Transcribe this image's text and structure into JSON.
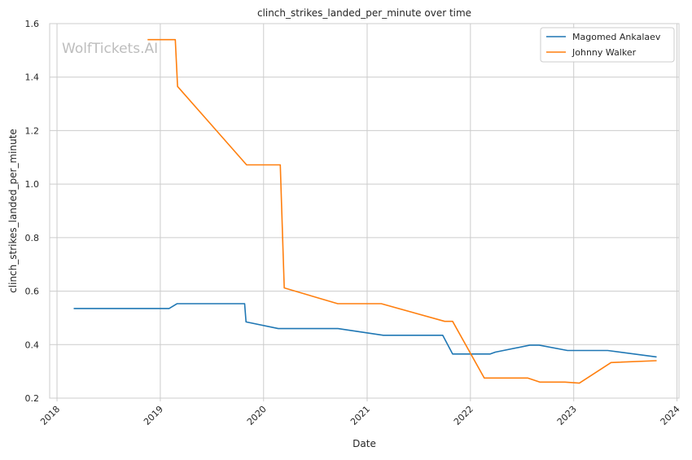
{
  "chart_data": {
    "type": "line",
    "title": "clinch_strikes_landed_per_minute over time",
    "xlabel": "Date",
    "ylabel": "clinch_strikes_landed_per_minute",
    "watermark": "WolfTickets.AI",
    "xlim": [
      "2017-12-06",
      "2024-01-08"
    ],
    "ylim": [
      0.2,
      1.6
    ],
    "x_ticks": [
      "2018-01-01",
      "2019-01-01",
      "2020-01-01",
      "2021-01-01",
      "2022-01-01",
      "2023-01-01",
      "2024-01-01"
    ],
    "x_tick_labels": [
      "2018",
      "2019",
      "2020",
      "2021",
      "2022",
      "2023",
      "2024"
    ],
    "y_ticks": [
      0.2,
      0.4,
      0.6,
      0.8,
      1.0,
      1.2,
      1.4,
      1.6
    ],
    "y_tick_labels": [
      "0.2",
      "0.4",
      "0.6",
      "0.8",
      "1.0",
      "1.2",
      "1.4",
      "1.6"
    ],
    "grid": true,
    "legend_position": "top-right",
    "series": [
      {
        "name": "Magomed Ankalaev",
        "color": "#1f77b4",
        "points": [
          {
            "x": "2018-03-01",
            "y": 0.535
          },
          {
            "x": "2019-02-01",
            "y": 0.535
          },
          {
            "x": "2019-03-01",
            "y": 0.553
          },
          {
            "x": "2019-10-26",
            "y": 0.553
          },
          {
            "x": "2019-10-31",
            "y": 0.485
          },
          {
            "x": "2020-02-22",
            "y": 0.46
          },
          {
            "x": "2020-09-20",
            "y": 0.46
          },
          {
            "x": "2021-02-27",
            "y": 0.435
          },
          {
            "x": "2021-09-25",
            "y": 0.435
          },
          {
            "x": "2021-10-30",
            "y": 0.365
          },
          {
            "x": "2022-03-12",
            "y": 0.365
          },
          {
            "x": "2022-03-30",
            "y": 0.372
          },
          {
            "x": "2022-07-30",
            "y": 0.398
          },
          {
            "x": "2022-09-01",
            "y": 0.398
          },
          {
            "x": "2022-12-10",
            "y": 0.378
          },
          {
            "x": "2023-05-01",
            "y": 0.378
          },
          {
            "x": "2023-10-21",
            "y": 0.354
          }
        ]
      },
      {
        "name": "Johnny Walker",
        "color": "#ff7f0e",
        "points": [
          {
            "x": "2018-11-17",
            "y": 1.54
          },
          {
            "x": "2019-02-23",
            "y": 1.54
          },
          {
            "x": "2019-03-03",
            "y": 1.365
          },
          {
            "x": "2019-11-02",
            "y": 1.072
          },
          {
            "x": "2020-02-29",
            "y": 1.072
          },
          {
            "x": "2020-03-14",
            "y": 0.612
          },
          {
            "x": "2020-09-19",
            "y": 0.553
          },
          {
            "x": "2021-02-20",
            "y": 0.553
          },
          {
            "x": "2021-10-02",
            "y": 0.487
          },
          {
            "x": "2021-10-30",
            "y": 0.487
          },
          {
            "x": "2022-02-19",
            "y": 0.275
          },
          {
            "x": "2022-07-23",
            "y": 0.275
          },
          {
            "x": "2022-09-03",
            "y": 0.26
          },
          {
            "x": "2022-12-01",
            "y": 0.26
          },
          {
            "x": "2023-01-21",
            "y": 0.256
          },
          {
            "x": "2023-05-13",
            "y": 0.333
          },
          {
            "x": "2023-10-21",
            "y": 0.34
          }
        ]
      }
    ]
  }
}
